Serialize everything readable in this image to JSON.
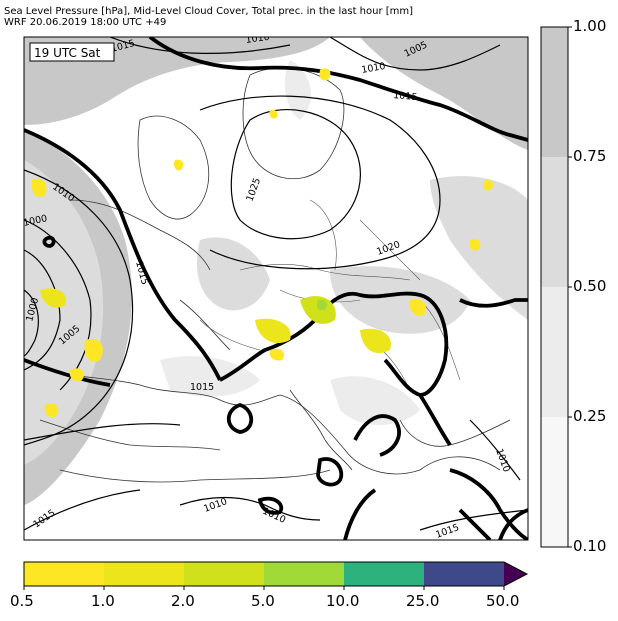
{
  "header": {
    "line1": "Sea Level Pressure [hPa], Mid-Level Cloud Cover, Total prec. in the last hour [mm]",
    "line2": "WRF 20.06.2019 18:00 UTC +49"
  },
  "map": {
    "time_label": "19 UTC Sat",
    "isobar_labels": [
      "1015",
      "1010",
      "1010",
      "1005",
      "1015",
      "1010",
      "1025",
      "1020",
      "1000",
      "1015",
      "1005",
      "1000",
      "1015",
      "1010",
      "1010",
      "1015",
      "1015",
      "1010"
    ]
  },
  "cloud_colorbar": {
    "ticks": [
      "1.00",
      "0.75",
      "0.50",
      "0.25",
      "0.10"
    ],
    "colors": [
      "#c8c8c8",
      "#dcdcdc",
      "#ececec",
      "#f7f7f7"
    ]
  },
  "precip_colorbar": {
    "ticks": [
      "0.5",
      "1.0",
      "2.0",
      "5.0",
      "10.0",
      "25.0",
      "50.0"
    ],
    "colors": [
      "#fde725",
      "#ece51b",
      "#d0e11c",
      "#a0da39",
      "#2db27d",
      "#3e4989",
      "#440154"
    ]
  }
}
